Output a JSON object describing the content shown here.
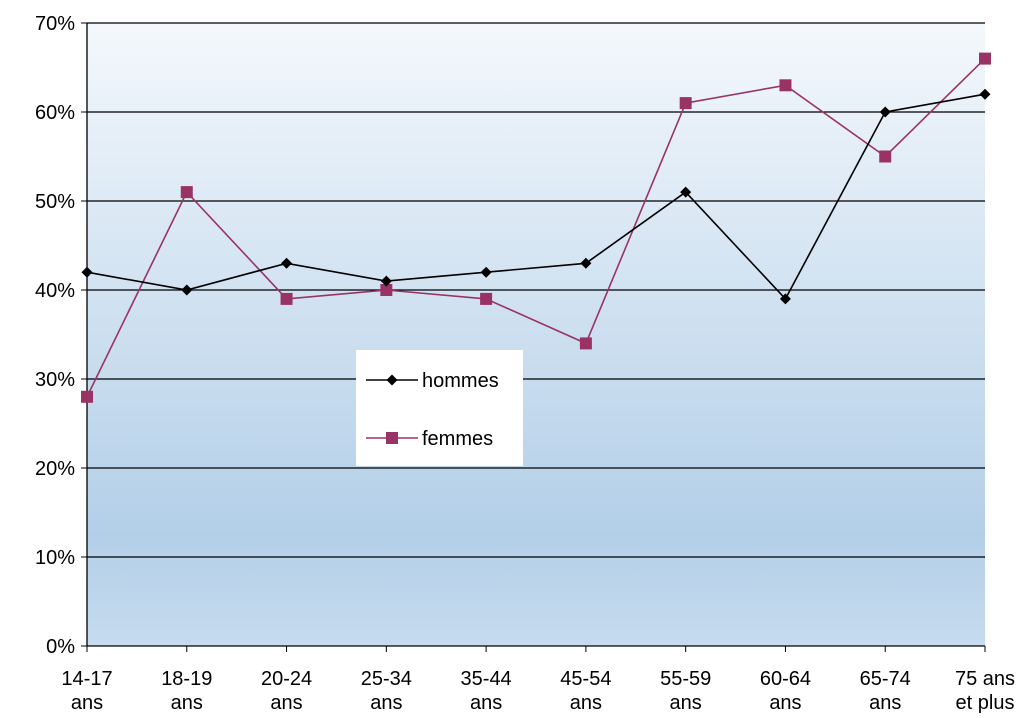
{
  "chart_data": {
    "type": "line",
    "categories": [
      [
        "14-17",
        "ans"
      ],
      [
        "18-19",
        "ans"
      ],
      [
        "20-24",
        "ans"
      ],
      [
        "25-34",
        "ans"
      ],
      [
        "35-44",
        "ans"
      ],
      [
        "45-54",
        "ans"
      ],
      [
        "55-59",
        "ans"
      ],
      [
        "60-64",
        "ans"
      ],
      [
        "65-74",
        "ans"
      ],
      [
        "75 ans",
        "et plus"
      ]
    ],
    "y_ticks": [
      "0%",
      "10%",
      "20%",
      "30%",
      "40%",
      "50%",
      "60%",
      "70%"
    ],
    "ylim": [
      0,
      70
    ],
    "grid": true,
    "legend_position": "center",
    "series": [
      {
        "name": "hommes",
        "color": "#000000",
        "marker": "diamond",
        "values": [
          42,
          40,
          43,
          41,
          42,
          43,
          51,
          39,
          60,
          62
        ]
      },
      {
        "name": "femmes",
        "color": "#993366",
        "marker": "square",
        "values": [
          28,
          51,
          39,
          40,
          39,
          34,
          61,
          63,
          55,
          66
        ]
      }
    ]
  }
}
